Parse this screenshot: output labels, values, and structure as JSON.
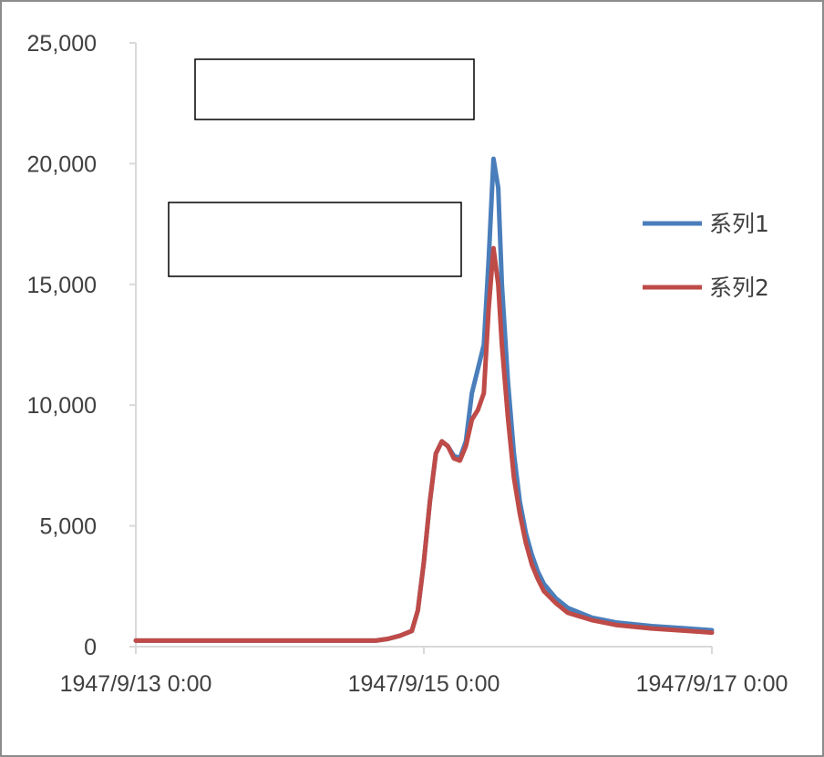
{
  "chart_data": {
    "type": "line",
    "title": "",
    "xlabel": "",
    "ylabel": "",
    "x_ticks": [
      "1947/9/13 0:00",
      "1947/9/15 0:00",
      "1947/9/17 0:00"
    ],
    "x_range_hours": [
      0,
      96
    ],
    "y_ticks": [
      "0",
      "5,000",
      "10,000",
      "15,000",
      "20,000",
      "25,000"
    ],
    "ylim": [
      0,
      25000
    ],
    "grid": false,
    "legend_position": "right",
    "series": [
      {
        "name": "系列1",
        "color": "#4a7ebb",
        "points": [
          [
            0,
            250
          ],
          [
            40,
            250
          ],
          [
            42,
            320
          ],
          [
            44,
            450
          ],
          [
            46,
            650
          ],
          [
            47,
            1500
          ],
          [
            48,
            3500
          ],
          [
            49,
            6000
          ],
          [
            50,
            8000
          ],
          [
            51,
            8500
          ],
          [
            52,
            8300
          ],
          [
            53,
            7900
          ],
          [
            54,
            7800
          ],
          [
            55,
            8500
          ],
          [
            56,
            10500
          ],
          [
            57,
            11500
          ],
          [
            58,
            12500
          ],
          [
            58.8,
            16000
          ],
          [
            59.6,
            20200
          ],
          [
            60.4,
            19000
          ],
          [
            61,
            15000
          ],
          [
            62,
            11000
          ],
          [
            63,
            8000
          ],
          [
            64,
            6000
          ],
          [
            65,
            4700
          ],
          [
            66,
            3800
          ],
          [
            67,
            3100
          ],
          [
            68,
            2600
          ],
          [
            70,
            2000
          ],
          [
            72,
            1600
          ],
          [
            76,
            1200
          ],
          [
            80,
            1000
          ],
          [
            86,
            850
          ],
          [
            92,
            750
          ],
          [
            96,
            680
          ]
        ]
      },
      {
        "name": "系列2",
        "color": "#be4b48",
        "points": [
          [
            0,
            250
          ],
          [
            40,
            250
          ],
          [
            42,
            320
          ],
          [
            44,
            450
          ],
          [
            46,
            650
          ],
          [
            47,
            1500
          ],
          [
            48,
            3500
          ],
          [
            49,
            6000
          ],
          [
            50,
            8000
          ],
          [
            51,
            8500
          ],
          [
            52,
            8300
          ],
          [
            53,
            7800
          ],
          [
            54,
            7700
          ],
          [
            55,
            8300
          ],
          [
            56,
            9400
          ],
          [
            57,
            9800
          ],
          [
            58,
            10500
          ],
          [
            58.8,
            14000
          ],
          [
            59.6,
            16500
          ],
          [
            60.4,
            15000
          ],
          [
            61,
            12500
          ],
          [
            62,
            9500
          ],
          [
            63,
            7000
          ],
          [
            64,
            5500
          ],
          [
            65,
            4300
          ],
          [
            66,
            3400
          ],
          [
            67,
            2800
          ],
          [
            68,
            2300
          ],
          [
            70,
            1800
          ],
          [
            72,
            1400
          ],
          [
            76,
            1100
          ],
          [
            80,
            900
          ],
          [
            86,
            750
          ],
          [
            92,
            650
          ],
          [
            96,
            580
          ]
        ]
      }
    ]
  },
  "overlays": [
    "redaction-box-top",
    "redaction-box-middle"
  ]
}
